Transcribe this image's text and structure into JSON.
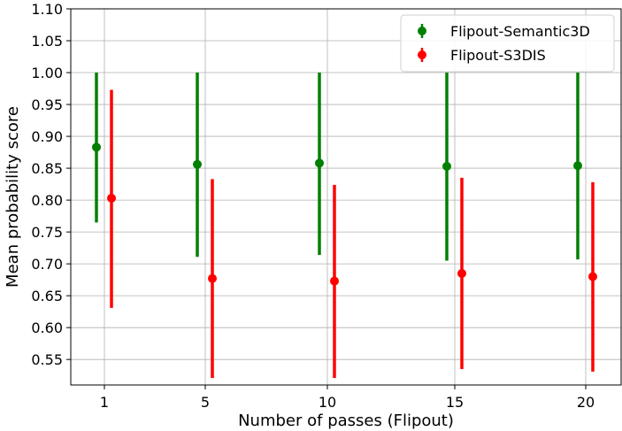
{
  "chart_data": {
    "type": "scatter",
    "title": "",
    "xlabel": "Number of passes (Flipout)",
    "ylabel": "Mean probability score",
    "categories": [
      "1",
      "5",
      "10",
      "15",
      "20"
    ],
    "ylim": [
      0.51,
      1.1
    ],
    "yticks": [
      "0.55",
      "0.60",
      "0.65",
      "0.70",
      "0.75",
      "0.80",
      "0.85",
      "0.90",
      "0.95",
      "1.00",
      "1.05",
      "1.10"
    ],
    "grid": true,
    "legend_position": "top-right",
    "series": [
      {
        "name": "Flipout-Semantic3D",
        "color": "#008000",
        "values": [
          0.883,
          0.856,
          0.858,
          0.853,
          0.854
        ],
        "lower": [
          0.765,
          0.711,
          0.714,
          0.705,
          0.707
        ],
        "upper": [
          1.0,
          1.0,
          1.0,
          1.0,
          1.0
        ]
      },
      {
        "name": "Flipout-S3DIS",
        "color": "#ff0000",
        "values": [
          0.803,
          0.677,
          0.673,
          0.685,
          0.68
        ],
        "lower": [
          0.631,
          0.521,
          0.521,
          0.535,
          0.531
        ],
        "upper": [
          0.973,
          0.833,
          0.824,
          0.835,
          0.828
        ]
      }
    ]
  }
}
